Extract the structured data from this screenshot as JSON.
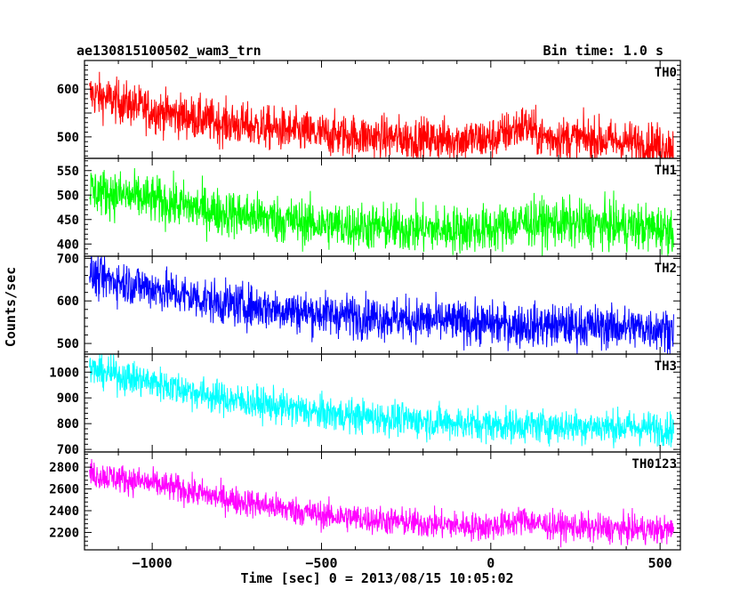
{
  "chart_data": {
    "type": "line",
    "title": "ae130815100502_wam3_trn",
    "subtitle": "Bin time: 1.0 s",
    "xlabel": "Time [sec] 0 = 2013/08/15 10:05:02",
    "ylabel": "Counts/sec",
    "xlim": [
      -1200,
      560
    ],
    "x_range": [
      -1185,
      540
    ],
    "x_ticks": [
      -1000,
      -500,
      0,
      500
    ],
    "x_tick_labels": [
      "−1000",
      "−500",
      "0",
      "500"
    ],
    "grid": false,
    "legend": "none",
    "series": [
      {
        "name": "TH0",
        "color": "#ff0000",
        "ylim": [
          455,
          660
        ],
        "yticks": [
          500,
          550,
          600
        ],
        "yticklabels": [
          "500",
          "",
          "600"
        ],
        "trend_x": [
          -1185,
          -1000,
          -800,
          -500,
          -200,
          0,
          100,
          150,
          300,
          540
        ],
        "trend_y": [
          590,
          555,
          530,
          505,
          495,
          495,
          525,
          500,
          495,
          480
        ],
        "noise_amplitude": 45
      },
      {
        "name": "TH1",
        "color": "#00ff00",
        "ylim": [
          375,
          575
        ],
        "yticks": [
          400,
          450,
          500,
          550
        ],
        "yticklabels": [
          "400",
          "450",
          "500",
          "550"
        ],
        "trend_x": [
          -1185,
          -1000,
          -800,
          -500,
          -200,
          0,
          100,
          300,
          540
        ],
        "trend_y": [
          510,
          490,
          465,
          440,
          430,
          430,
          445,
          440,
          430
        ],
        "noise_amplitude": 48
      },
      {
        "name": "TH2",
        "color": "#0000ff",
        "ylim": [
          475,
          705
        ],
        "yticks": [
          500,
          600,
          700
        ],
        "yticklabels": [
          "500",
          "600",
          "700"
        ],
        "trend_x": [
          -1185,
          -1000,
          -800,
          -500,
          -200,
          0,
          300,
          540
        ],
        "trend_y": [
          660,
          630,
          595,
          570,
          555,
          545,
          540,
          535
        ],
        "noise_amplitude": 50
      },
      {
        "name": "TH3",
        "color": "#00ffff",
        "ylim": [
          690,
          1070
        ],
        "yticks": [
          700,
          800,
          900,
          1000
        ],
        "yticklabels": [
          "700",
          "800",
          "900",
          "1000"
        ],
        "trend_x": [
          -1185,
          -1000,
          -800,
          -500,
          -200,
          0,
          300,
          540
        ],
        "trend_y": [
          1010,
          960,
          900,
          840,
          810,
          795,
          790,
          780
        ],
        "noise_amplitude": 65
      },
      {
        "name": "TH0123",
        "color": "#ff00ff",
        "ylim": [
          2040,
          2940
        ],
        "yticks": [
          2200,
          2400,
          2600,
          2800
        ],
        "yticklabels": [
          "2200",
          "2400",
          "2600",
          "2800"
        ],
        "trend_x": [
          -1185,
          -1000,
          -800,
          -500,
          -200,
          0,
          100,
          150,
          300,
          540
        ],
        "trend_y": [
          2740,
          2650,
          2520,
          2360,
          2280,
          2250,
          2320,
          2270,
          2240,
          2220
        ],
        "noise_amplitude": 130
      }
    ]
  }
}
